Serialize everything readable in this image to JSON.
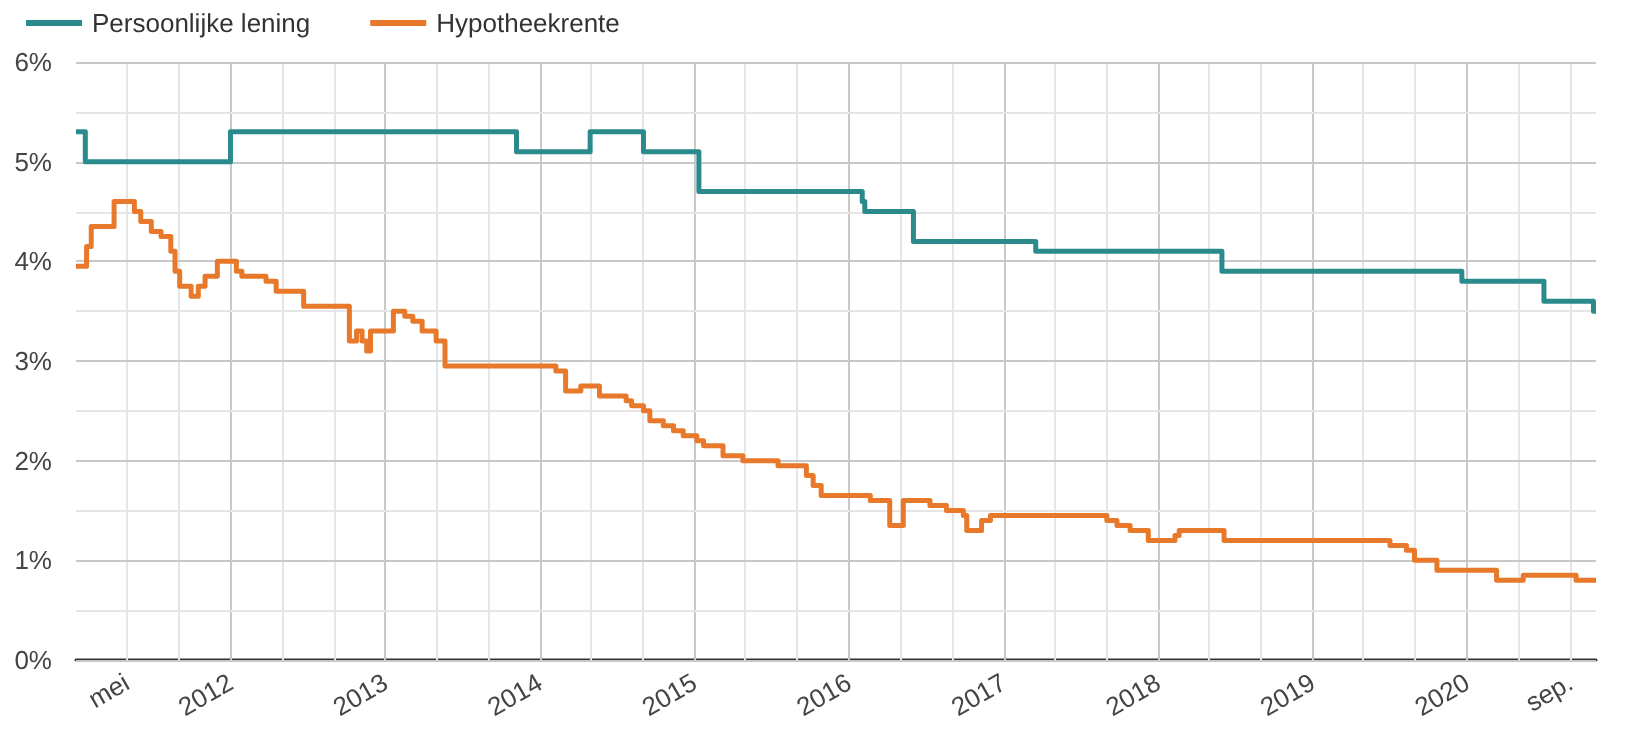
{
  "chart_data": {
    "type": "step",
    "legend": "top left",
    "grid": true,
    "xlim": [
      "2011-01-01",
      "2020-11-01"
    ],
    "ylim": [
      0,
      6
    ],
    "xticks": [
      {
        "value": "2011-05-01",
        "label": "mei"
      },
      {
        "value": "2011-09-01",
        "label": null
      },
      "2012",
      {
        "value": "2012-05-01",
        "label": null
      },
      {
        "value": "2012-09-01",
        "label": null
      },
      "2013",
      {
        "value": "2013-05-01",
        "label": null
      },
      {
        "value": "2013-09-01",
        "label": null
      },
      "2014",
      {
        "value": "2014-05-01",
        "label": null
      },
      {
        "value": "2014-09-01",
        "label": null
      },
      "2015",
      {
        "value": "2015-05-01",
        "label": null
      },
      {
        "value": "2015-09-01",
        "label": null
      },
      "2016",
      {
        "value": "2016-05-01",
        "label": null
      },
      {
        "value": "2016-09-01",
        "label": null
      },
      "2017",
      {
        "value": "2017-05-01",
        "label": null
      },
      {
        "value": "2017-09-01",
        "label": null
      },
      "2018",
      {
        "value": "2018-05-01",
        "label": null
      },
      {
        "value": "2018-09-01",
        "label": null
      },
      "2019",
      {
        "value": "2019-05-01",
        "label": null
      },
      {
        "value": "2019-09-01",
        "label": null
      },
      "2020",
      {
        "value": "2020-05-01",
        "label": null
      },
      {
        "value": "2020-09-01",
        "label": "sep."
      }
    ],
    "yticks": [
      {
        "value": 0,
        "label": "0%"
      },
      {
        "value": 0.5,
        "label": null
      },
      {
        "value": 1,
        "label": "1%"
      },
      {
        "value": 1.5,
        "label": null
      },
      {
        "value": 2,
        "label": "2%"
      },
      {
        "value": 2.5,
        "label": null
      },
      {
        "value": 3,
        "label": "3%"
      },
      {
        "value": 3.5,
        "label": null
      },
      {
        "value": 4,
        "label": "4%"
      },
      {
        "value": 4.5,
        "label": null
      },
      {
        "value": 5,
        "label": "5%"
      },
      {
        "value": 5.5,
        "label": null
      },
      {
        "value": 6,
        "label": "6%"
      }
    ],
    "series": [
      {
        "name": "Persoonlijke lening",
        "color": "#2a8a8c",
        "x": [
          "2011-01-01",
          "2011-01-23",
          "2012-01-01",
          "2013-11-07",
          "2014-04-30",
          "2014-09-03",
          "2015-01-12",
          "2016-02-02",
          "2016-02-08",
          "2016-06-02",
          "2017-03-18",
          "2018-06-01",
          "2019-12-20",
          "2020-07-01",
          "2020-10-26",
          "2020-11-01"
        ],
        "values": [
          5.3,
          5.0,
          5.3,
          5.1,
          5.3,
          5.1,
          4.7,
          4.6,
          4.5,
          4.2,
          4.1,
          3.9,
          3.8,
          3.6,
          3.5,
          3.5
        ]
      },
      {
        "name": "Hypotheekrente",
        "color": "#e8792a",
        "x": [
          "2011-01-01",
          "2011-01-26",
          "2011-02-06",
          "2011-04-01",
          "2011-05-19",
          "2011-06-03",
          "2011-06-28",
          "2011-07-21",
          "2011-08-13",
          "2011-08-23",
          "2011-09-03",
          "2011-09-30",
          "2011-10-17",
          "2011-11-02",
          "2011-12-01",
          "2012-01-15",
          "2012-01-28",
          "2012-03-25",
          "2012-04-18",
          "2012-06-22",
          "2012-10-08",
          "2012-10-25",
          "2012-11-07",
          "2012-11-18",
          "2012-11-27",
          "2013-01-20",
          "2013-02-16",
          "2013-03-07",
          "2013-03-29",
          "2013-05-01",
          "2013-05-22",
          "2014-02-08",
          "2014-03-03",
          "2014-04-08",
          "2014-05-22",
          "2014-07-24",
          "2014-08-06",
          "2014-09-03",
          "2014-09-18",
          "2014-10-20",
          "2014-11-13",
          "2014-12-06",
          "2015-01-07",
          "2015-01-23",
          "2015-03-10",
          "2015-04-26",
          "2015-07-18",
          "2015-09-23",
          "2015-10-09",
          "2015-10-28",
          "2016-02-21",
          "2016-04-07",
          "2016-05-09",
          "2016-07-11",
          "2016-08-19",
          "2016-09-28",
          "2016-10-06",
          "2016-11-10",
          "2016-12-01",
          "2017-09-02",
          "2017-09-26",
          "2017-10-27",
          "2017-12-09",
          "2018-02-10",
          "2018-02-20",
          "2018-06-06",
          "2019-07-03",
          "2019-08-11",
          "2019-08-30",
          "2019-10-22",
          "2020-03-11",
          "2020-05-13",
          "2020-09-15",
          "2020-11-01"
        ],
        "values": [
          3.95,
          4.15,
          4.35,
          4.6,
          4.5,
          4.4,
          4.3,
          4.25,
          4.1,
          3.9,
          3.75,
          3.65,
          3.75,
          3.85,
          4.0,
          3.9,
          3.85,
          3.8,
          3.7,
          3.55,
          3.2,
          3.3,
          3.2,
          3.1,
          3.3,
          3.5,
          3.45,
          3.4,
          3.3,
          3.2,
          2.95,
          2.9,
          2.7,
          2.75,
          2.65,
          2.6,
          2.55,
          2.5,
          2.4,
          2.35,
          2.3,
          2.25,
          2.2,
          2.15,
          2.05,
          2.0,
          1.95,
          1.85,
          1.75,
          1.65,
          1.6,
          1.35,
          1.6,
          1.55,
          1.5,
          1.45,
          1.3,
          1.4,
          1.45,
          1.4,
          1.35,
          1.3,
          1.2,
          1.25,
          1.3,
          1.2,
          1.15,
          1.1,
          1.0,
          0.9,
          0.8,
          0.85,
          0.8,
          0.8
        ]
      }
    ]
  }
}
